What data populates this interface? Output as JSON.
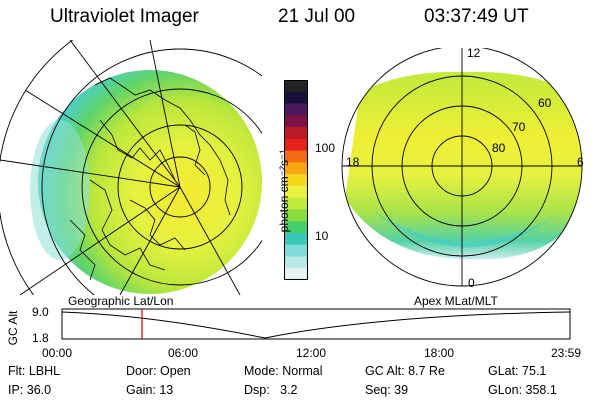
{
  "header": {
    "title": "Ultraviolet Imager",
    "date": "21 Jul 00",
    "time": "03:37:49 UT"
  },
  "colorbar": {
    "unit_label": "photon cm⁻²s⁻¹",
    "tick_labels": [
      "100",
      "10"
    ],
    "colors": [
      "#222222",
      "#1a0f3a",
      "#4a1a5e",
      "#7d1245",
      "#b81a2a",
      "#e8201c",
      "#f26a16",
      "#f8a511",
      "#f5d71a",
      "#e9f23f",
      "#c0ea3c",
      "#88dd3e",
      "#44cf6a",
      "#38c8b8",
      "#7fdcd8",
      "#b9e9e6",
      "#e6f2f2"
    ]
  },
  "left_panel": {
    "caption": "Geographic Lat/Lon"
  },
  "right_panel": {
    "caption": "Apex MLat/MLT",
    "mlt_labels": {
      "top": "12",
      "bottom": "0",
      "left": "18",
      "right": "6"
    },
    "mlat_labels": [
      "60",
      "70",
      "80"
    ]
  },
  "timeline": {
    "ylabel": "GC Alt",
    "y_ticks": [
      "9.0",
      "1.8"
    ],
    "x_ticks": [
      "00:00",
      "06:00",
      "12:00",
      "18:00",
      "23:59"
    ],
    "cursor_fraction": 0.1575,
    "cursor_color": "#cc0000"
  },
  "info": {
    "row1": [
      "Flt: LBHL",
      "Door: Open",
      "Mode: Normal",
      "GC Alt: 8.7 Re",
      "GLat: 75.1"
    ],
    "row2": [
      "IP: 36.0",
      "Gain: 13",
      "Dsp:   3.2",
      "Seq: 39",
      "GLon: 358.1"
    ]
  }
}
